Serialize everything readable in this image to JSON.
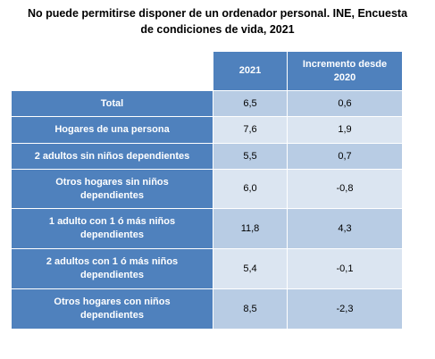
{
  "chart_data": {
    "type": "table",
    "title": "No puede permitirse disponer de un ordenador personal. INE, Encuesta de condiciones de vida, 2021",
    "title_lines": [
      "No puede permitirse disponer de un ordenador personal. INE, Encuesta",
      "de condiciones de vida, 2021"
    ],
    "columns": [
      "",
      "2021",
      "Incremento desde 2020"
    ],
    "column_lines": {
      "col1": [
        "2021"
      ],
      "col2": [
        "Incremento desde",
        "2020"
      ]
    },
    "rows": [
      {
        "label": "Total",
        "label_lines": [
          "Total"
        ],
        "v2021": "6,5",
        "increment": "0,6"
      },
      {
        "label": "Hogares de una persona",
        "label_lines": [
          "Hogares de una persona"
        ],
        "v2021": "7,6",
        "increment": "1,9"
      },
      {
        "label": "2 adultos sin niños dependientes",
        "label_lines": [
          "2 adultos sin niños dependientes"
        ],
        "v2021": "5,5",
        "increment": "0,7"
      },
      {
        "label": "Otros hogares sin niños dependientes",
        "label_lines": [
          "Otros hogares sin niños",
          "dependientes"
        ],
        "v2021": "6,0",
        "increment": "-0,8"
      },
      {
        "label": "1 adulto con 1 ó más niños dependientes",
        "label_lines": [
          "1 adulto con 1 ó más niños",
          "dependientes"
        ],
        "v2021": "11,8",
        "increment": "4,3"
      },
      {
        "label": "2 adultos con 1 ó más niños dependientes",
        "label_lines": [
          "2 adultos con 1 ó más niños",
          "dependientes"
        ],
        "v2021": "5,4",
        "increment": "-0,1"
      },
      {
        "label": "Otros hogares con niños dependientes",
        "label_lines": [
          "Otros hogares con niños",
          "dependientes"
        ],
        "v2021": "8,5",
        "increment": "-2,3"
      }
    ]
  },
  "colors": {
    "header_blue": "#4f81bd",
    "band_dark": "#b8cce4",
    "band_light": "#dbe5f1",
    "header_text": "#ffffff"
  }
}
